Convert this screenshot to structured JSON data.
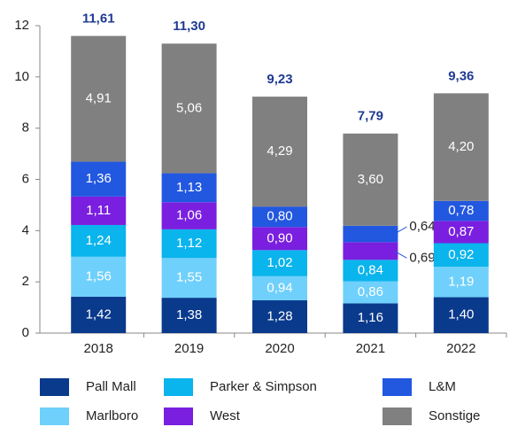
{
  "chart_data": {
    "type": "stacked_bar",
    "categories": [
      "2018",
      "2019",
      "2020",
      "2021",
      "2022"
    ],
    "series": [
      {
        "name": "Pall Mall",
        "color": "#0a3a8c",
        "values": [
          1.42,
          1.38,
          1.28,
          1.16,
          1.4
        ],
        "value_labels": [
          "1,42",
          "1,38",
          "1,28",
          "1,16",
          "1,40"
        ]
      },
      {
        "name": "Marlboro",
        "color": "#6fd0fb",
        "values": [
          1.56,
          1.55,
          0.94,
          0.86,
          1.19
        ],
        "value_labels": [
          "1,56",
          "1,55",
          "0,94",
          "0,86",
          "1,19"
        ]
      },
      {
        "name": "Parker & Simpson",
        "color": "#0ab4ec",
        "values": [
          1.24,
          1.12,
          1.02,
          0.84,
          0.92
        ],
        "value_labels": [
          "1,24",
          "1,12",
          "1,02",
          "0,84",
          "0,92"
        ]
      },
      {
        "name": "West",
        "color": "#7a1fe0",
        "values": [
          1.11,
          1.06,
          0.9,
          0.69,
          0.87
        ],
        "value_labels": [
          "1,11",
          "1,06",
          "0,90",
          "0,69",
          "0,87"
        ]
      },
      {
        "name": "L&M",
        "color": "#2257e0",
        "values": [
          1.36,
          1.13,
          0.8,
          0.64,
          0.78
        ],
        "value_labels": [
          "1,36",
          "1,13",
          "0,80",
          "0,64",
          "0,78"
        ]
      },
      {
        "name": "Sonstige",
        "color": "#808080",
        "values": [
          4.91,
          5.06,
          4.29,
          3.6,
          4.2
        ],
        "value_labels": [
          "4,91",
          "5,06",
          "4,29",
          "3,60",
          "4,20"
        ]
      }
    ],
    "totals": [
      11.61,
      11.3,
      9.23,
      7.79,
      9.36
    ],
    "total_labels": [
      "11,61",
      "11,30",
      "9,23",
      "7,79",
      "9,36"
    ],
    "ylim": [
      0,
      12
    ],
    "yticks": [
      0,
      2,
      4,
      6,
      8,
      10,
      12
    ]
  }
}
